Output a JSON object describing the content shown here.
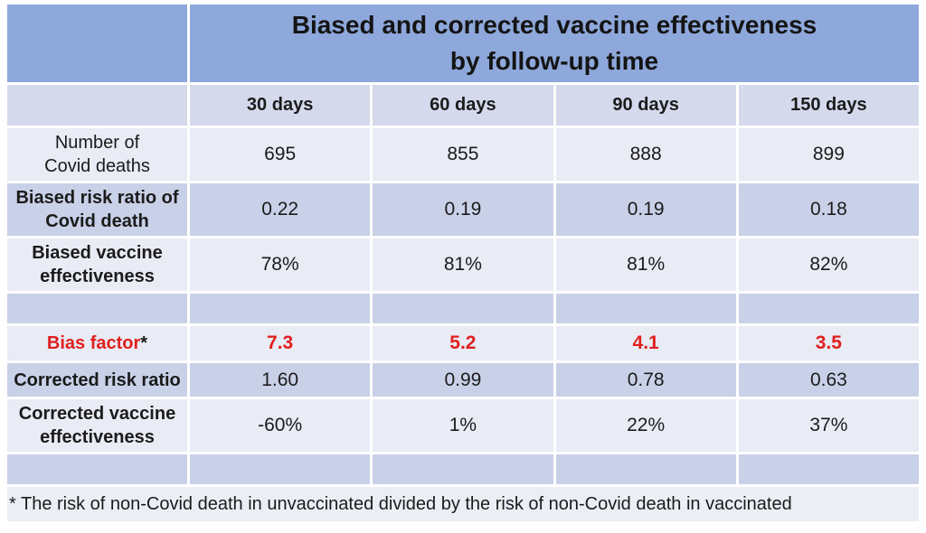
{
  "chart_data": {
    "type": "table",
    "title": "Biased and corrected vaccine effectiveness by follow-up time",
    "categories": [
      "30 days",
      "60 days",
      "90 days",
      "150 days"
    ],
    "series": [
      {
        "name": "Number of Covid deaths",
        "values": [
          695,
          855,
          888,
          899
        ]
      },
      {
        "name": "Biased risk ratio of Covid death",
        "values": [
          0.22,
          0.19,
          0.19,
          0.18
        ]
      },
      {
        "name": "Biased vaccine effectiveness",
        "values": [
          "78%",
          "81%",
          "81%",
          "82%"
        ]
      },
      {
        "name": "Bias factor*",
        "values": [
          7.3,
          5.2,
          4.1,
          3.5
        ]
      },
      {
        "name": "Corrected risk ratio",
        "values": [
          1.6,
          0.99,
          0.78,
          0.63
        ]
      },
      {
        "name": "Corrected vaccine effectiveness",
        "values": [
          "-60%",
          "1%",
          "22%",
          "37%"
        ]
      }
    ],
    "footnote": "* The risk of non-Covid death in unvaccinated divided by the risk of non-Covid death in vaccinated",
    "layout_hints": {
      "banded_rows": true,
      "header_fill": "blue",
      "grid": "white separators"
    }
  },
  "table": {
    "title": {
      "line1": "Biased and corrected vaccine effectiveness",
      "line2": "by follow-up time"
    },
    "columns": [
      "30 days",
      "60 days",
      "90 days",
      "150 days"
    ],
    "rows": [
      {
        "label": "Number of\nCovid deaths",
        "values": [
          "695",
          "855",
          "888",
          "899"
        ]
      },
      {
        "label": "Biased risk ratio of\nCovid death",
        "values": [
          "0.22",
          "0.19",
          "0.19",
          "0.18"
        ]
      },
      {
        "label": "Biased vaccine\neffectiveness",
        "values": [
          "78%",
          "81%",
          "81%",
          "82%"
        ]
      },
      {
        "label": "Bias factor",
        "suffix": "*",
        "values": [
          "7.3",
          "5.2",
          "4.1",
          "3.5"
        ]
      },
      {
        "label": "Corrected risk ratio",
        "values": [
          "1.60",
          "0.99",
          "0.78",
          "0.63"
        ]
      },
      {
        "label": "Corrected vaccine\neffectiveness",
        "values": [
          "-60%",
          "1%",
          "22%",
          "37%"
        ]
      }
    ],
    "footnote": "* The risk of non-Covid death in unvaccinated divided by the risk of non-Covid death in vaccinated"
  },
  "colors": {
    "header_blue": "#8EA8DB",
    "band_light": "#E9EBF5",
    "band_mid": "#D4D9EC",
    "band_dark": "#C9D1E8",
    "footnote_bg": "#ECEEF6",
    "highlight_red": "#E0201E",
    "text": "#1B1B1B",
    "separator": "#FFFFFF"
  }
}
